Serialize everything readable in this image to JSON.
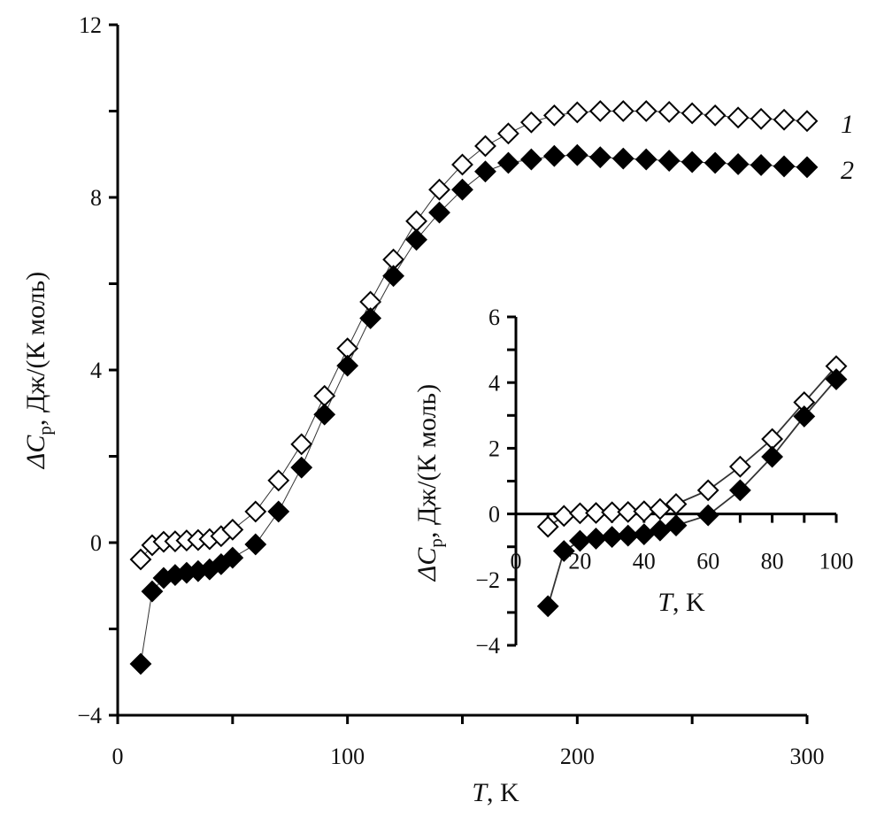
{
  "chart_data": {
    "type": "scatter",
    "main": {
      "xlabel_var": "T",
      "xlabel_unit": ", K",
      "ylabel_prefix": "ΔC",
      "ylabel_sub": "p",
      "ylabel_unit": ", Дж/(К моль)",
      "xlim": [
        0,
        300
      ],
      "ylim": [
        -4,
        12
      ],
      "xticks": [
        "0",
        "100",
        "200",
        "300"
      ],
      "yticks": [
        "−4",
        "0",
        "4",
        "8",
        "12"
      ],
      "grid": false
    },
    "inset": {
      "xlabel_var": "T",
      "xlabel_unit": ", K",
      "ylabel_prefix": "ΔC",
      "ylabel_sub": "p",
      "ylabel_unit": ", Дж/(К моль)",
      "xlim": [
        0,
        100
      ],
      "ylim": [
        -4,
        6
      ],
      "xticks": [
        "0",
        "20",
        "40",
        "60",
        "80",
        "100"
      ],
      "yticks": [
        "−4",
        "−2",
        "0",
        "2",
        "4",
        "6"
      ],
      "grid": false
    },
    "x": [
      10,
      15,
      20,
      25,
      30,
      35,
      40,
      45,
      50,
      60,
      70,
      80,
      90,
      100,
      110,
      120,
      130,
      140,
      150,
      160,
      170,
      180,
      190,
      200,
      210,
      220,
      230,
      240,
      250,
      260,
      270,
      280,
      290,
      300
    ],
    "series": [
      {
        "name": "1",
        "marker": "open-diamond",
        "values": [
          -0.39,
          -0.06,
          0.02,
          0.03,
          0.05,
          0.06,
          0.08,
          0.15,
          0.3,
          0.72,
          1.44,
          2.28,
          3.4,
          4.5,
          5.58,
          6.56,
          7.45,
          8.18,
          8.76,
          9.19,
          9.48,
          9.74,
          9.9,
          9.97,
          10.0,
          10.0,
          10.0,
          9.98,
          9.95,
          9.9,
          9.85,
          9.82,
          9.8,
          9.77
        ]
      },
      {
        "name": "2",
        "marker": "filled-diamond",
        "values": [
          -2.81,
          -1.13,
          -0.82,
          -0.75,
          -0.7,
          -0.66,
          -0.62,
          -0.5,
          -0.35,
          -0.04,
          0.72,
          1.74,
          2.97,
          4.1,
          5.2,
          6.18,
          7.02,
          7.65,
          8.18,
          8.6,
          8.8,
          8.88,
          8.96,
          8.98,
          8.93,
          8.9,
          8.88,
          8.85,
          8.82,
          8.8,
          8.77,
          8.75,
          8.72,
          8.7
        ]
      }
    ],
    "legend": [
      "1",
      "2"
    ],
    "legend_placement": "right, at line ends"
  }
}
